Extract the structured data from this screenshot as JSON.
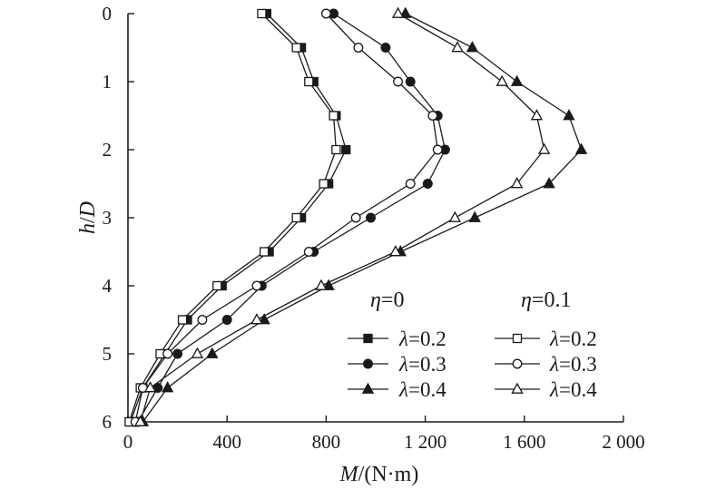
{
  "chart_data": {
    "type": "line",
    "xlabel_var": "M",
    "xlabel_unit": "/(N·m)",
    "ylabel_var1": "h",
    "ylabel_sep": "/",
    "ylabel_var2": "D",
    "xlim": [
      0,
      2000
    ],
    "ylim": [
      0,
      6
    ],
    "y_inverted": true,
    "x_axis_position": "bottom",
    "grid": false,
    "legend_placement": "bottom-right",
    "xticks": [
      0,
      400,
      800,
      1200,
      1600,
      2000
    ],
    "xtick_labels": [
      "0",
      "400",
      "800",
      "1 200",
      "1 600",
      "2 000"
    ],
    "yticks": [
      0,
      1,
      2,
      3,
      4,
      5,
      6
    ],
    "ytick_labels": [
      "0",
      "1",
      "2",
      "3",
      "4",
      "5",
      "6"
    ],
    "legend_groups": [
      {
        "var": "η",
        "eq": "=0"
      },
      {
        "var": "η",
        "eq": "=0.1"
      }
    ],
    "y": [
      0,
      0.5,
      1.0,
      1.5,
      2.0,
      2.5,
      3.0,
      3.5,
      4.0,
      4.5,
      5.0,
      5.5,
      6.0
    ],
    "series": [
      {
        "group": 0,
        "var": "λ",
        "eq": "=0.2",
        "marker": "square",
        "filled": true,
        "x": [
          560,
          700,
          750,
          840,
          880,
          810,
          700,
          570,
          380,
          240,
          150,
          60,
          10
        ]
      },
      {
        "group": 0,
        "var": "λ",
        "eq": "=0.3",
        "marker": "circle",
        "filled": true,
        "x": [
          830,
          1040,
          1140,
          1250,
          1280,
          1210,
          980,
          750,
          540,
          400,
          200,
          120,
          40
        ]
      },
      {
        "group": 0,
        "var": "λ",
        "eq": "=0.4",
        "marker": "triangle",
        "filled": true,
        "x": [
          1120,
          1390,
          1570,
          1780,
          1830,
          1700,
          1400,
          1100,
          810,
          550,
          340,
          160,
          60
        ]
      },
      {
        "group": 1,
        "var": "λ",
        "eq": "=0.2",
        "marker": "square",
        "filled": false,
        "x": [
          540,
          680,
          730,
          830,
          840,
          790,
          680,
          550,
          360,
          220,
          130,
          50,
          5
        ]
      },
      {
        "group": 1,
        "var": "λ",
        "eq": "=0.3",
        "marker": "circle",
        "filled": false,
        "x": [
          800,
          930,
          1090,
          1230,
          1250,
          1140,
          920,
          730,
          520,
          300,
          160,
          60,
          30
        ]
      },
      {
        "group": 1,
        "var": "λ",
        "eq": "=0.4",
        "marker": "triangle",
        "filled": false,
        "x": [
          1090,
          1330,
          1510,
          1650,
          1680,
          1570,
          1320,
          1080,
          780,
          520,
          280,
          90,
          50
        ]
      }
    ]
  }
}
